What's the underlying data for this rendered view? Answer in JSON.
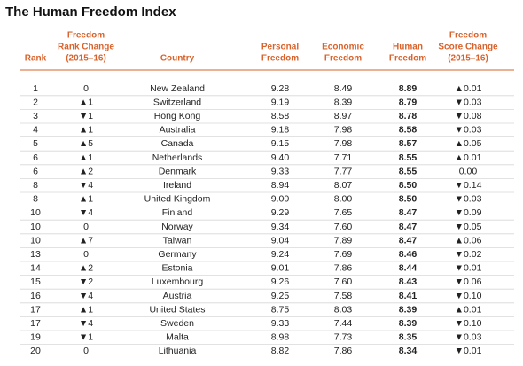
{
  "title": "The Human Freedom Index",
  "table": {
    "headers": [
      [
        "Rank"
      ],
      [
        "Freedom",
        "Rank Change",
        "(2015–16)"
      ],
      [
        "Country"
      ],
      [
        "Personal",
        "Freedom"
      ],
      [
        "Economic",
        "Freedom"
      ],
      [
        "Human",
        "Freedom"
      ],
      [
        "Freedom",
        "Score Change",
        "(2015–16)"
      ]
    ],
    "rows": [
      [
        "1",
        "0",
        "New Zealand",
        "9.28",
        "8.49",
        "8.89",
        "▲0.01"
      ],
      [
        "2",
        "▲1",
        "Switzerland",
        "9.19",
        "8.39",
        "8.79",
        "▼0.03"
      ],
      [
        "3",
        "▼1",
        "Hong Kong",
        "8.58",
        "8.97",
        "8.78",
        "▼0.08"
      ],
      [
        "4",
        "▲1",
        "Australia",
        "9.18",
        "7.98",
        "8.58",
        "▼0.03"
      ],
      [
        "5",
        "▲5",
        "Canada",
        "9.15",
        "7.98",
        "8.57",
        "▲0.05"
      ],
      [
        "6",
        "▲1",
        "Netherlands",
        "9.40",
        "7.71",
        "8.55",
        "▲0.01"
      ],
      [
        "6",
        "▲2",
        "Denmark",
        "9.33",
        "7.77",
        "8.55",
        "0.00"
      ],
      [
        "8",
        "▼4",
        "Ireland",
        "8.94",
        "8.07",
        "8.50",
        "▼0.14"
      ],
      [
        "8",
        "▲1",
        "United Kingdom",
        "9.00",
        "8.00",
        "8.50",
        "▼0.03"
      ],
      [
        "10",
        "▼4",
        "Finland",
        "9.29",
        "7.65",
        "8.47",
        "▼0.09"
      ],
      [
        "10",
        "0",
        "Norway",
        "9.34",
        "7.60",
        "8.47",
        "▼0.05"
      ],
      [
        "10",
        "▲7",
        "Taiwan",
        "9.04",
        "7.89",
        "8.47",
        "▲0.06"
      ],
      [
        "13",
        "0",
        "Germany",
        "9.24",
        "7.69",
        "8.46",
        "▼0.02"
      ],
      [
        "14",
        "▲2",
        "Estonia",
        "9.01",
        "7.86",
        "8.44",
        "▼0.01"
      ],
      [
        "15",
        "▼2",
        "Luxembourg",
        "9.26",
        "7.60",
        "8.43",
        "▼0.06"
      ],
      [
        "16",
        "▼4",
        "Austria",
        "9.25",
        "7.58",
        "8.41",
        "▼0.10"
      ],
      [
        "17",
        "▲1",
        "United States",
        "8.75",
        "8.03",
        "8.39",
        "▲0.01"
      ],
      [
        "17",
        "▼4",
        "Sweden",
        "9.33",
        "7.44",
        "8.39",
        "▼0.10"
      ],
      [
        "19",
        "▼1",
        "Malta",
        "8.98",
        "7.73",
        "8.35",
        "▼0.03"
      ],
      [
        "20",
        "0",
        "Lithuania",
        "8.82",
        "7.86",
        "8.34",
        "▼0.01"
      ]
    ]
  }
}
